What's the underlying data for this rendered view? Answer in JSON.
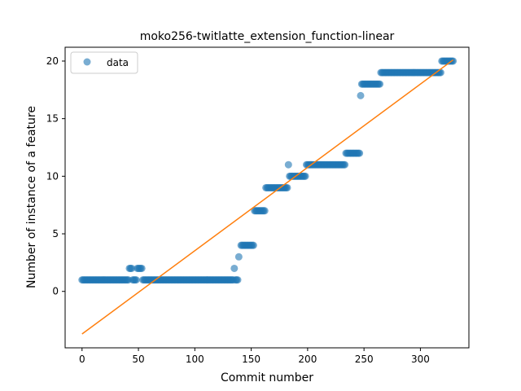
{
  "chart_data": {
    "type": "scatter",
    "title": "moko256-twitlatte_extension_function-linear",
    "xlabel": "Commit number",
    "ylabel": "Number of instance of a feature",
    "xlim": [
      -15,
      343
    ],
    "ylim": [
      -4.9,
      21.2
    ],
    "xticks": [
      0,
      50,
      100,
      150,
      200,
      250,
      300
    ],
    "yticks": [
      0,
      5,
      10,
      15,
      20
    ],
    "legend": {
      "label": "data",
      "placement": "top-left"
    },
    "grid": false,
    "colors": {
      "points": "#1f77b4",
      "fit_line": "#ff7f0e"
    },
    "step_segments": [
      {
        "x_start": 0,
        "x_end": 41,
        "y": 1
      },
      {
        "x_start": 42,
        "x_end": 44,
        "y": 2
      },
      {
        "x_start": 45,
        "x_end": 48,
        "y": 1
      },
      {
        "x_start": 49,
        "x_end": 53,
        "y": 2
      },
      {
        "x_start": 54,
        "x_end": 134,
        "y": 1
      },
      {
        "x_start": 135,
        "x_end": 135,
        "y": 2
      },
      {
        "x_start": 136,
        "x_end": 138,
        "y": 1
      },
      {
        "x_start": 139,
        "x_end": 139,
        "y": 3
      },
      {
        "x_start": 141,
        "x_end": 152,
        "y": 4
      },
      {
        "x_start": 153,
        "x_end": 162,
        "y": 7
      },
      {
        "x_start": 163,
        "x_end": 182,
        "y": 9
      },
      {
        "x_start": 183,
        "x_end": 183,
        "y": 11
      },
      {
        "x_start": 184,
        "x_end": 198,
        "y": 10
      },
      {
        "x_start": 199,
        "x_end": 233,
        "y": 11
      },
      {
        "x_start": 234,
        "x_end": 246,
        "y": 12
      },
      {
        "x_start": 247,
        "x_end": 247,
        "y": 17
      },
      {
        "x_start": 248,
        "x_end": 264,
        "y": 18
      },
      {
        "x_start": 265,
        "x_end": 318,
        "y": 19
      },
      {
        "x_start": 319,
        "x_end": 329,
        "y": 20
      }
    ],
    "fit_line": {
      "x": [
        0,
        329
      ],
      "y": [
        -3.7,
        20.1
      ]
    }
  }
}
